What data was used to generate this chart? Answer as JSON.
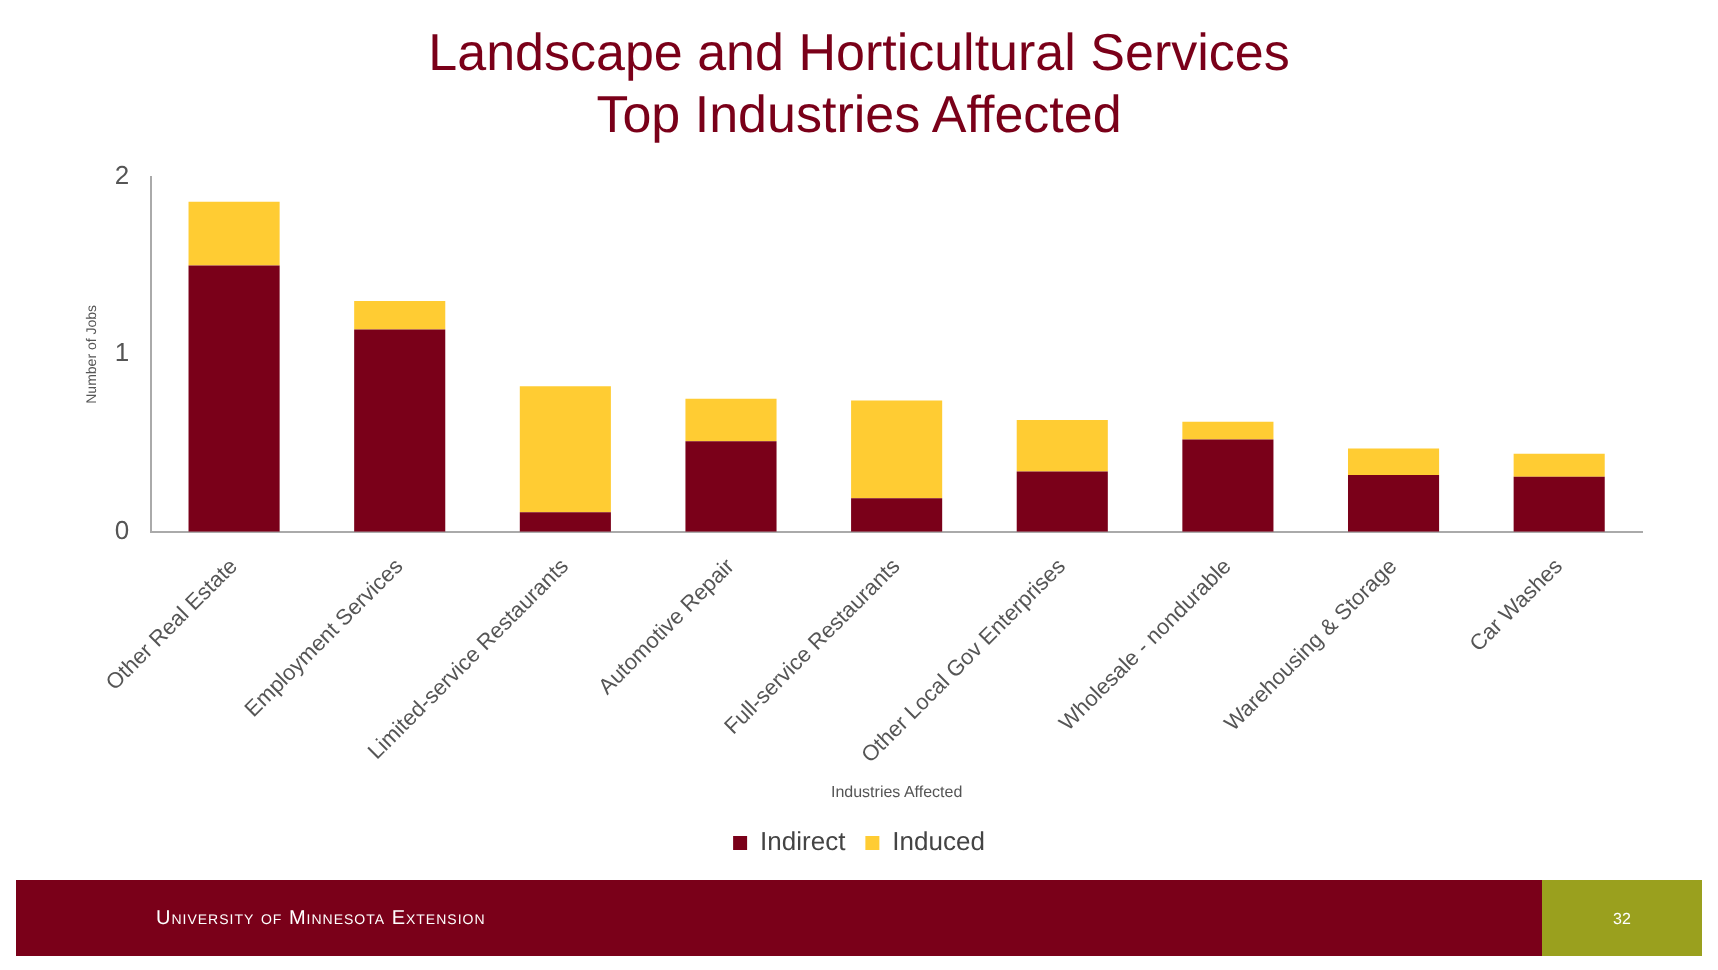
{
  "chart_data": {
    "type": "bar",
    "title": [
      "Landscape and Horticultural Services",
      "Top Industries Affected"
    ],
    "xlabel": "Industries Affected",
    "ylabel": "Number of Jobs",
    "categories": [
      "Other Real Estate",
      "Employment Services",
      "Limited-service Restaurants",
      "Automotive Repair",
      "Full-service Restaurants",
      "Other Local Gov Enterprises",
      "Wholesale - nondurable",
      "Warehousing & Storage",
      "Car Washes"
    ],
    "series": [
      {
        "name": "Indirect",
        "color": "#7a0019",
        "values": [
          1.5,
          1.14,
          0.11,
          0.51,
          0.19,
          0.34,
          0.52,
          0.32,
          0.31
        ]
      },
      {
        "name": "Induced",
        "color": "#ffcc33",
        "values": [
          0.36,
          0.16,
          0.71,
          0.24,
          0.55,
          0.29,
          0.1,
          0.15,
          0.13
        ]
      }
    ],
    "stacked": true,
    "ylim": [
      0,
      2
    ],
    "yticks": [
      0,
      1,
      2
    ],
    "grid": false,
    "legend": "bottom",
    "annotations": [
      "University of Minnesota Extension",
      "32"
    ]
  }
}
